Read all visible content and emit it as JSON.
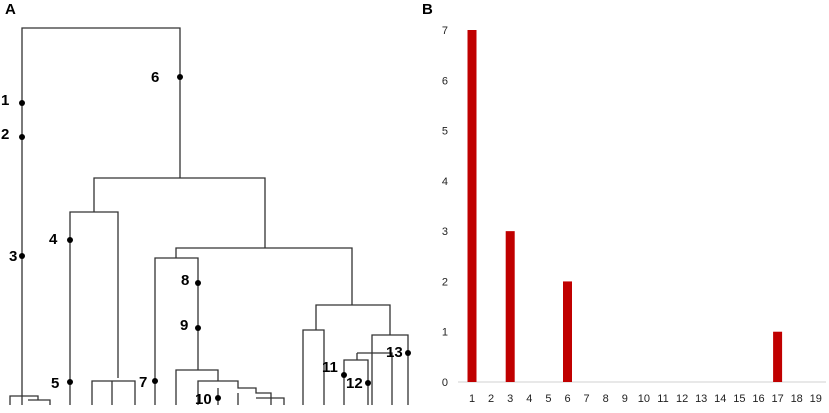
{
  "panels": {
    "a": {
      "letter": "A"
    },
    "b": {
      "letter": "B"
    }
  },
  "dendrogram": {
    "nodes": [
      {
        "id": 1,
        "label": "1"
      },
      {
        "id": 2,
        "label": "2"
      },
      {
        "id": 3,
        "label": "3"
      },
      {
        "id": 4,
        "label": "4"
      },
      {
        "id": 5,
        "label": "5"
      },
      {
        "id": 6,
        "label": "6"
      },
      {
        "id": 7,
        "label": "7"
      },
      {
        "id": 8,
        "label": "8"
      },
      {
        "id": 9,
        "label": "9"
      },
      {
        "id": 10,
        "label": "10"
      },
      {
        "id": 11,
        "label": "11"
      },
      {
        "id": 12,
        "label": "12"
      },
      {
        "id": 13,
        "label": "13"
      }
    ],
    "colors": {
      "branch": "#333333",
      "dot": "#000000"
    }
  },
  "chart_data": {
    "type": "bar",
    "title": "",
    "xlabel": "",
    "ylabel": "",
    "categories": [
      "1",
      "2",
      "3",
      "4",
      "5",
      "6",
      "7",
      "8",
      "9",
      "10",
      "11",
      "12",
      "13",
      "14",
      "15",
      "16",
      "17",
      "18",
      "19"
    ],
    "values": [
      7,
      0,
      3,
      0,
      0,
      2,
      0,
      0,
      0,
      0,
      0,
      0,
      0,
      0,
      0,
      0,
      1,
      0,
      0
    ],
    "ylim": [
      0,
      7
    ],
    "yticks": [
      "0",
      "1",
      "2",
      "3",
      "4",
      "5",
      "6",
      "7"
    ],
    "grid": false,
    "colors": {
      "bar": "#c00000",
      "axis": "#d0d0d0"
    }
  }
}
